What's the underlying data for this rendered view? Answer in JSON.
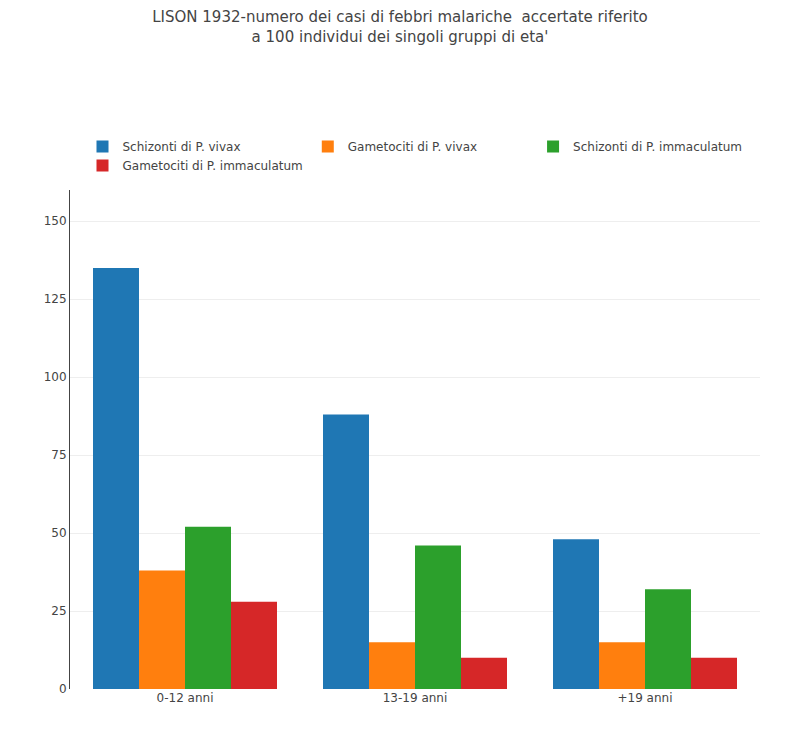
{
  "chart_data": {
    "type": "bar",
    "title": "LISON 1932-numero dei casi di febbri malariche  accertate riferito",
    "subtitle": "a 100 individui dei singoli gruppi di eta'",
    "categories": [
      "0-12 anni",
      "13-19 anni",
      "+19 anni"
    ],
    "series": [
      {
        "name": "Schizonti di P. vivax",
        "values": [
          135,
          88,
          48
        ]
      },
      {
        "name": "Gametociti di P. vivax",
        "values": [
          38,
          15,
          15
        ]
      },
      {
        "name": "Schizonti di P. immaculatum",
        "values": [
          52,
          46,
          32
        ]
      },
      {
        "name": "Gametociti di P. immaculatum",
        "values": [
          28,
          10,
          10
        ]
      }
    ],
    "ylim": [
      0,
      160
    ],
    "yticks": [
      0,
      25,
      50,
      75,
      100,
      125,
      150
    ],
    "grid": true,
    "legend": "top"
  }
}
